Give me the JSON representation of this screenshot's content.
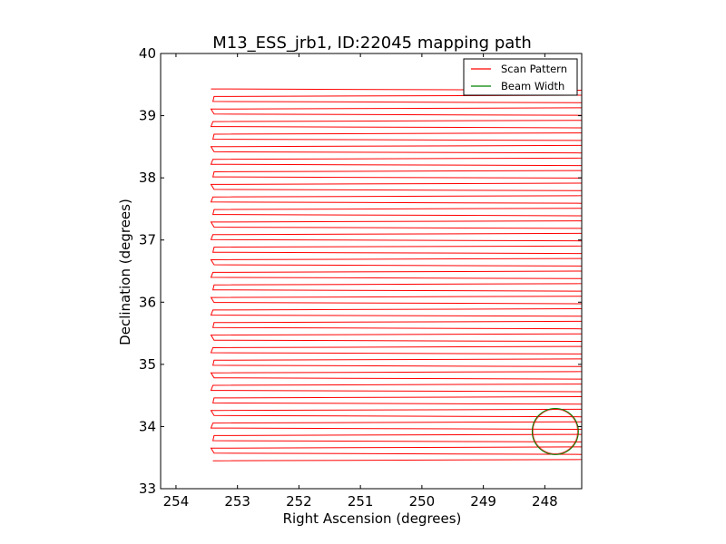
{
  "chart_data": {
    "type": "line",
    "title": "M13_ESS_jrb1, ID:22045 mapping path",
    "xlabel": "Right Ascension (degrees)",
    "ylabel": "Declination (degrees)",
    "xlim": [
      254.25,
      247.4
    ],
    "ylim": [
      33,
      40
    ],
    "x_inverted": true,
    "xticks": [
      254,
      253,
      252,
      251,
      250,
      249,
      248
    ],
    "yticks": [
      33,
      34,
      35,
      36,
      37,
      38,
      39,
      40
    ],
    "grid": false,
    "legend_placement": "top-right",
    "series": [
      {
        "name": "Scan Pattern",
        "color": "#ff0000",
        "kind": "raster",
        "ra_min": 253.4,
        "ra_max": 247.4,
        "dec_min": 33.47,
        "dec_max": 39.43,
        "num_legs": 60
      },
      {
        "name": "Beam Width",
        "color": "#008000",
        "kind": "circle",
        "center_ra": 247.83,
        "center_dec": 33.92,
        "radius_deg": 0.37
      }
    ]
  }
}
